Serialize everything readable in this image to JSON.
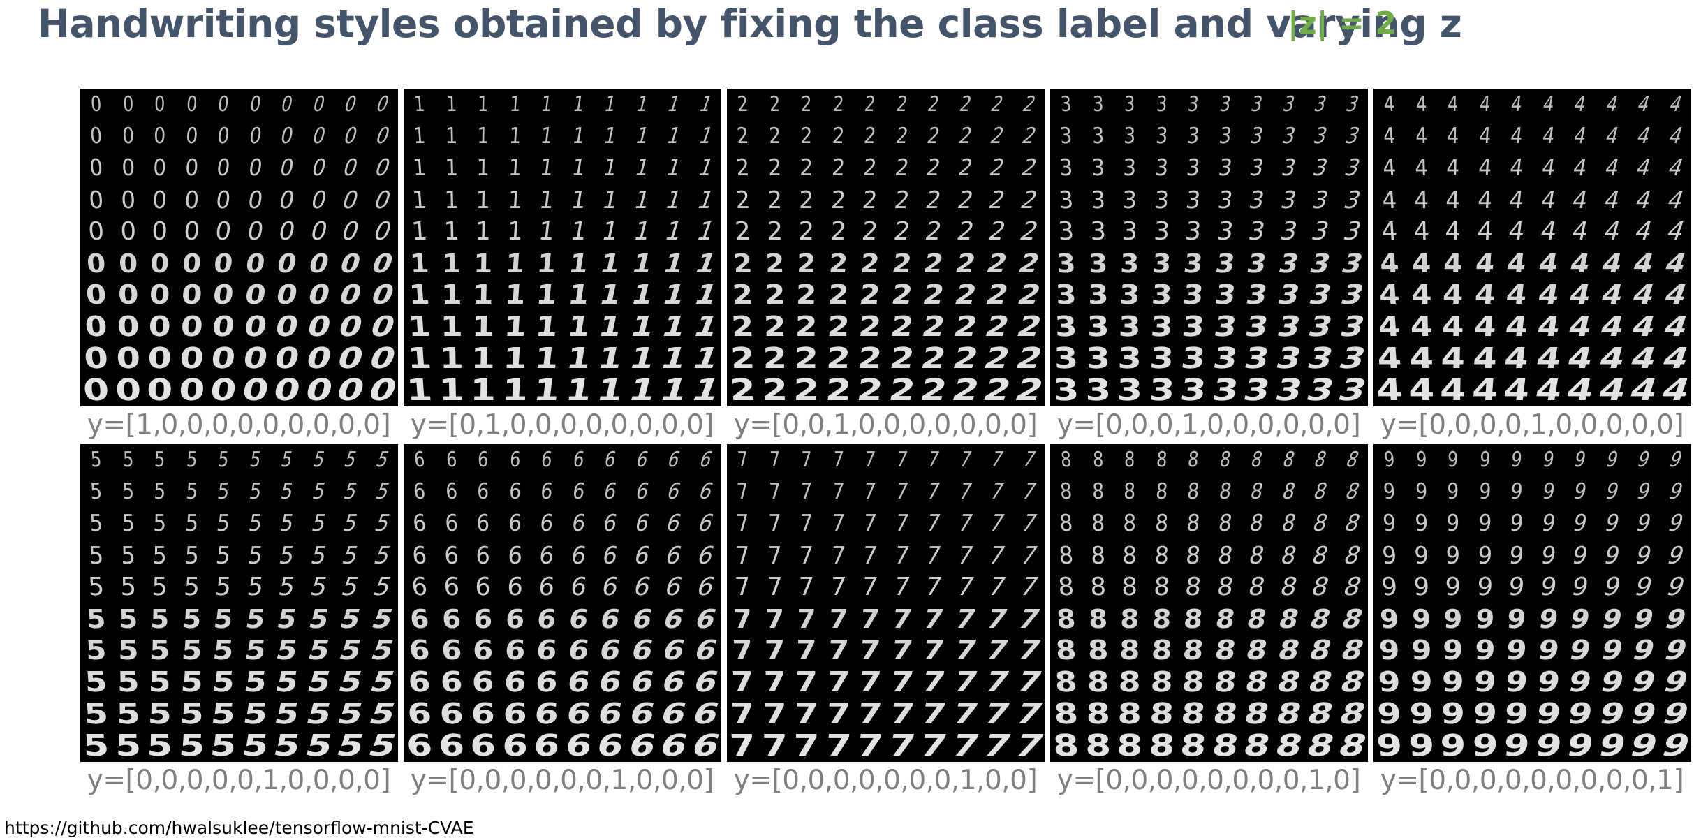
{
  "title": "Handwriting styles obtained by fixing the class label and varying z",
  "z_note": "|z| = 2",
  "source": "https://github.com/hwalsuklee/tensorflow-mnist-CVAE",
  "grid": {
    "rows": 10,
    "cols": 10
  },
  "colors": {
    "title": "#44546a",
    "z_note": "#70ad47",
    "caption": "#7f7f7f",
    "panel_bg": "#000000",
    "digit": "#e8e8e8"
  },
  "panels": [
    {
      "digit": "0",
      "label": "y=[1,0,0,0,0,0,0,0,0,0]"
    },
    {
      "digit": "1",
      "label": "y=[0,1,0,0,0,0,0,0,0,0]"
    },
    {
      "digit": "2",
      "label": "y=[0,0,1,0,0,0,0,0,0,0]"
    },
    {
      "digit": "3",
      "label": "y=[0,0,0,1,0,0,0,0,0,0]"
    },
    {
      "digit": "4",
      "label": "y=[0,0,0,0,1,0,0,0,0,0]"
    },
    {
      "digit": "5",
      "label": "y=[0,0,0,0,0,1,0,0,0,0]"
    },
    {
      "digit": "6",
      "label": "y=[0,0,0,0,0,0,1,0,0,0]"
    },
    {
      "digit": "7",
      "label": "y=[0,0,0,0,0,0,0,1,0,0]"
    },
    {
      "digit": "8",
      "label": "y=[0,0,0,0,0,0,0,0,1,0]"
    },
    {
      "digit": "9",
      "label": "y=[0,0,0,0,0,0,0,0,0,1]"
    }
  ]
}
